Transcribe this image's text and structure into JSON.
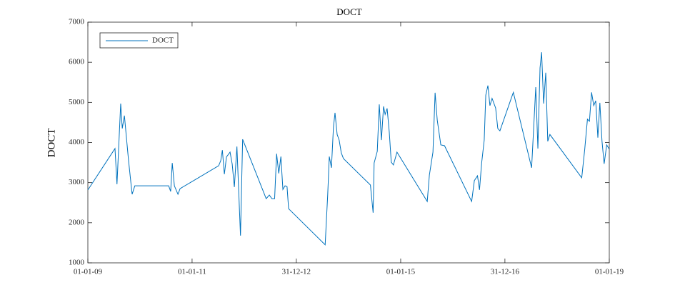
{
  "chart_data": {
    "type": "line",
    "title": "DOCT",
    "ylabel": "DOCT",
    "x": [
      "2009-01-01",
      "2009-07-10",
      "2009-07-24",
      "2009-08-19",
      "2009-08-30",
      "2009-09-14",
      "2009-10-13",
      "2009-11-07",
      "2009-11-26",
      "2010-07-21",
      "2010-08-04",
      "2010-08-15",
      "2010-08-30",
      "2010-09-24",
      "2010-10-09",
      "2011-07-06",
      "2011-07-21",
      "2011-08-01",
      "2011-08-15",
      "2011-08-30",
      "2011-09-24",
      "2011-10-09",
      "2011-10-24",
      "2011-11-11",
      "2011-12-06",
      "2011-12-21",
      "2012-06-03",
      "2012-06-25",
      "2012-07-13",
      "2012-08-01",
      "2012-08-15",
      "2012-08-30",
      "2012-09-14",
      "2012-09-28",
      "2012-10-13",
      "2012-10-27",
      "2012-11-07",
      "2013-07-21",
      "2013-08-08",
      "2013-08-19",
      "2013-09-03",
      "2013-09-17",
      "2013-09-28",
      "2013-10-13",
      "2013-10-27",
      "2013-11-11",
      "2013-11-26",
      "2014-06-03",
      "2014-06-22",
      "2014-06-29",
      "2014-07-21",
      "2014-08-04",
      "2014-08-19",
      "2014-09-03",
      "2014-09-14",
      "2014-09-28",
      "2014-10-13",
      "2014-10-27",
      "2014-11-11",
      "2014-12-06",
      "2015-07-06",
      "2015-07-21",
      "2015-08-15",
      "2015-08-30",
      "2015-09-14",
      "2015-10-09",
      "2015-11-04",
      "2016-05-12",
      "2016-05-31",
      "2016-06-22",
      "2016-07-06",
      "2016-07-21",
      "2016-08-08",
      "2016-08-19",
      "2016-09-03",
      "2016-09-17",
      "2016-10-02",
      "2016-10-27",
      "2016-11-11",
      "2016-11-26",
      "2017-02-28",
      "2017-07-06",
      "2017-08-04",
      "2017-08-19",
      "2017-09-03",
      "2017-09-14",
      "2017-09-28",
      "2017-10-13",
      "2017-10-27",
      "2017-11-11",
      "2018-06-22",
      "2018-07-13",
      "2018-08-01",
      "2018-08-15",
      "2018-08-30",
      "2018-09-14",
      "2018-09-28",
      "2018-10-13",
      "2018-10-27",
      "2018-11-11",
      "2018-11-26",
      "2018-12-14",
      "2019-01-01"
    ],
    "series": [
      {
        "name": "DOCT",
        "color": "#0072bd",
        "values": [
          2816,
          3850,
          2960,
          4970,
          4350,
          4670,
          3550,
          2710,
          2920,
          2920,
          2780,
          3490,
          2920,
          2710,
          2850,
          3420,
          3550,
          3810,
          3210,
          3640,
          3760,
          3460,
          2890,
          3900,
          1680,
          4080,
          2600,
          2690,
          2600,
          2600,
          3720,
          3230,
          3650,
          2830,
          2920,
          2900,
          2350,
          1450,
          2710,
          3650,
          3370,
          4380,
          4740,
          4200,
          4060,
          3740,
          3600,
          2940,
          2250,
          3490,
          3780,
          4950,
          4060,
          4900,
          4700,
          4850,
          4260,
          3510,
          3440,
          3760,
          2530,
          3190,
          3760,
          5240,
          4560,
          3940,
          3920,
          2530,
          3050,
          3170,
          2820,
          3490,
          4060,
          5180,
          5420,
          4920,
          5100,
          4860,
          4350,
          4290,
          5250,
          3370,
          5380,
          3850,
          5860,
          6250,
          4970,
          5740,
          4030,
          4200,
          3120,
          3830,
          4580,
          4530,
          5250,
          4920,
          5040,
          4120,
          4990,
          4030,
          3470,
          3940,
          3830
        ]
      }
    ],
    "xlim": [
      "2009-01-01",
      "2019-01-01"
    ],
    "xticks": [
      {
        "value": "2009-01-01",
        "label": "01-01-09"
      },
      {
        "value": "2011-01-01",
        "label": "01-01-11"
      },
      {
        "value": "2012-12-31",
        "label": "31-12-12"
      },
      {
        "value": "2015-01-01",
        "label": "01-01-15"
      },
      {
        "value": "2016-12-31",
        "label": "31-12-16"
      },
      {
        "value": "2019-01-01",
        "label": "01-01-19"
      }
    ],
    "ylim": [
      1000,
      7000
    ],
    "yticks": [
      1000,
      2000,
      3000,
      4000,
      5000,
      6000,
      7000
    ],
    "grid": false,
    "legend": "upper left"
  }
}
